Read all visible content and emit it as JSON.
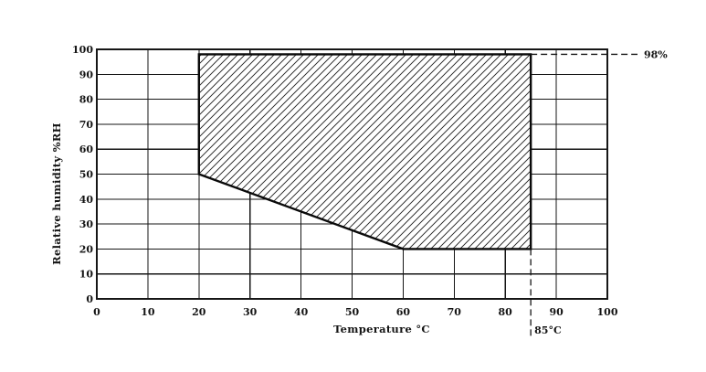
{
  "chart_data": {
    "type": "area",
    "title": "",
    "xlabel": "Temperature °C",
    "ylabel": "Relative humidity %RH",
    "xlim": [
      0,
      100
    ],
    "ylim": [
      0,
      100
    ],
    "x_ticks": [
      0,
      10,
      20,
      30,
      40,
      50,
      60,
      70,
      80,
      90,
      100
    ],
    "y_ticks": [
      0,
      10,
      20,
      30,
      40,
      50,
      60,
      70,
      80,
      90,
      100
    ],
    "grid": true,
    "legend": false,
    "region": {
      "name": "allowed-operating-area",
      "fill_style": "diagonal-hatch",
      "points": [
        [
          20,
          50
        ],
        [
          20,
          98
        ],
        [
          85,
          98
        ],
        [
          85,
          20
        ],
        [
          60,
          20
        ]
      ]
    },
    "annotations": [
      {
        "axis": "y",
        "value": 98,
        "from_x": 85,
        "label": "98%"
      },
      {
        "axis": "x",
        "value": 85,
        "from_y": 20,
        "label": "85°C"
      }
    ],
    "colors": {
      "ink": "#161616",
      "background": "#ffffff"
    }
  }
}
